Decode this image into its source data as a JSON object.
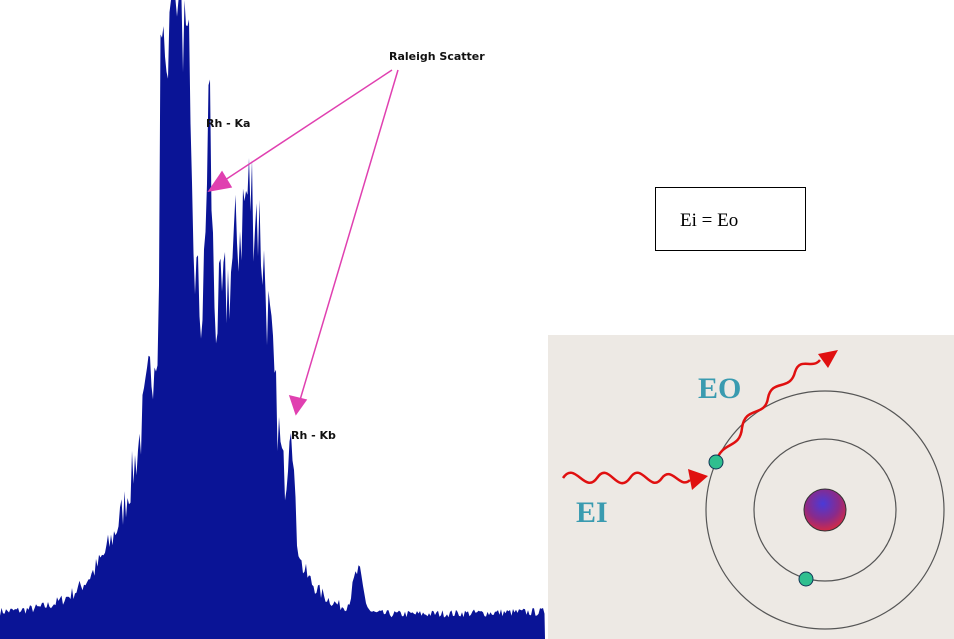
{
  "spectrum": {
    "annotation": "Raleigh Scatter",
    "peak_labels": [
      "Rh - Ka",
      "Rh - Kb"
    ]
  },
  "equation": "Ei = Eo",
  "atom_diagram": {
    "outgoing_label": "EO",
    "incoming_label": "EI"
  }
}
